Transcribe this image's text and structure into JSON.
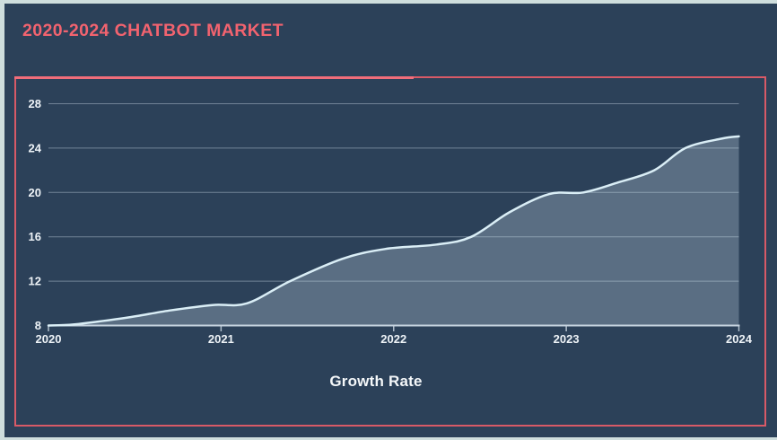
{
  "page": {
    "title": "2020-2024 CHATBOT MARKET"
  },
  "chart_data": {
    "type": "area",
    "title": "2020-2024 CHATBOT MARKET",
    "xlabel": "Growth Rate",
    "ylabel": "",
    "x_ticks": [
      "2020",
      "2021",
      "2022",
      "2023",
      "2024"
    ],
    "y_ticks": [
      8,
      12,
      16,
      20,
      24,
      28
    ],
    "xlim": [
      2020,
      2024
    ],
    "ylim": [
      8,
      28
    ],
    "grid": "horizontal-only",
    "legend_position": "none",
    "values_at_year_ticks": [
      8,
      10,
      15,
      20,
      25
    ],
    "series": [
      {
        "name": "Growth Rate",
        "x": [
          2020,
          2020.15,
          2020.45,
          2020.7,
          2020.95,
          2021.15,
          2021.4,
          2021.7,
          2021.95,
          2022.25,
          2022.45,
          2022.67,
          2022.9,
          2023.1,
          2023.3,
          2023.51,
          2023.69,
          2023.9,
          2024
        ],
        "y": [
          8.0,
          8.1,
          8.7,
          9.35,
          9.85,
          10.0,
          12.0,
          14.0,
          14.9,
          15.3,
          16.0,
          18.2,
          19.85,
          20.0,
          20.9,
          22.0,
          24.0,
          24.85,
          25.05
        ]
      }
    ]
  },
  "colors": {
    "outer_frame": "#cfdedd",
    "background": "#2c4159",
    "title_text": "#f2636f",
    "chart_border": "#d85a67",
    "chart_border_highlight": "#f16d7a",
    "gridline": "#8293a6",
    "axis_line": "#c6d3df",
    "area_line": "#daeef6",
    "area_fill": "rgba(216,234,243,0.27)",
    "tick_label": "#eef3f7",
    "axis_label_text": "#f4f7f9"
  }
}
